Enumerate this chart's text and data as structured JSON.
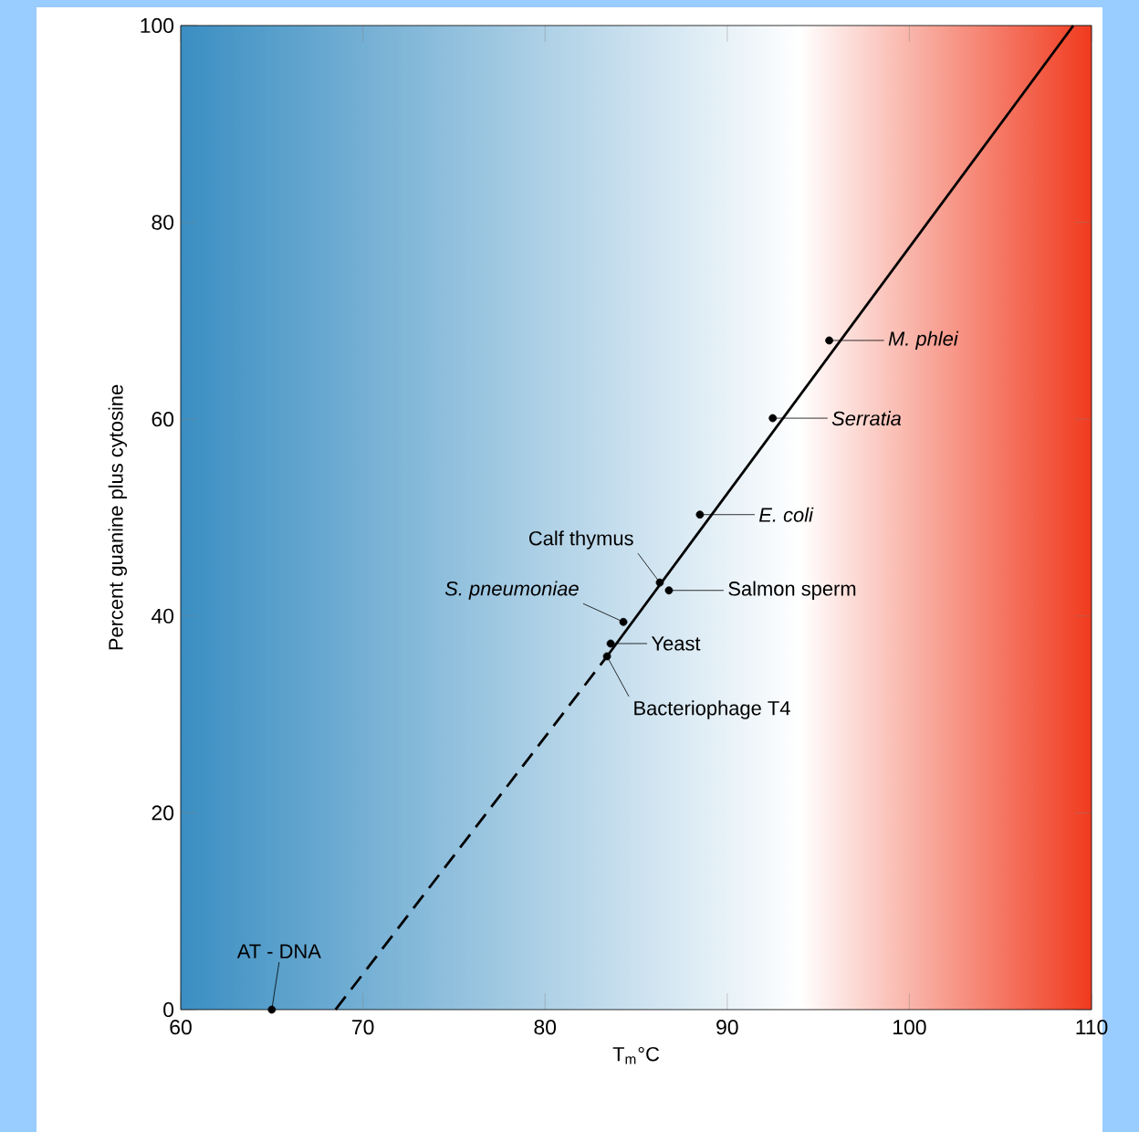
{
  "chart_data": {
    "type": "scatter",
    "xlabel": "T$_{m}$°C",
    "ylabel": "Percent guanine plus cytosine",
    "xlim": [
      60,
      110
    ],
    "ylim": [
      0,
      100
    ],
    "xticks": [
      60,
      70,
      80,
      90,
      100,
      110
    ],
    "yticks": [
      0,
      20,
      40,
      60,
      80,
      100
    ],
    "marker": "circle",
    "bands": [
      {
        "axis": "x",
        "from": 60,
        "to": 94,
        "color": "#3a8ec2"
      },
      {
        "axis": "x",
        "from": 94,
        "to": 110,
        "color": "#f03a1e"
      }
    ],
    "series": [
      {
        "color": "#000000",
        "x": [
          65.0,
          83.4,
          83.6,
          84.3,
          86.3,
          86.8,
          88.5,
          92.5,
          95.6
        ],
        "values": [
          0,
          35.9,
          37.2,
          39.4,
          43.4,
          42.6,
          50.3,
          60.1,
          68.0
        ]
      },
      {
        "type": "line",
        "color": "#000000",
        "line_style": "dashed",
        "marker": "none",
        "x": [
          68.5,
          83.4
        ],
        "values": [
          0,
          35.9
        ]
      },
      {
        "type": "line",
        "color": "#000000",
        "line_style": "solid",
        "marker": "none",
        "x": [
          83.4,
          109
        ],
        "values": [
          35.9,
          100
        ]
      }
    ],
    "annotations": [
      {
        "text": "AT - DNA",
        "x": 65.0,
        "y": 0
      },
      {
        "text": "Bacteriophage T4",
        "x": 83.4,
        "y": 35.9
      },
      {
        "text": "Yeast",
        "x": 83.6,
        "y": 37.2
      },
      {
        "text": "*S. pneumoniae*",
        "x": 84.3,
        "y": 39.4
      },
      {
        "text": "Calf thymus",
        "x": 86.3,
        "y": 43.4
      },
      {
        "text": "Salmon sperm",
        "x": 86.8,
        "y": 42.6
      },
      {
        "text": "*E. coli*",
        "x": 88.5,
        "y": 50.3
      },
      {
        "text": "*Serratia*",
        "x": 92.5,
        "y": 60.1
      },
      {
        "text": "*M. phlei*",
        "x": 95.6,
        "y": 68.0
      }
    ]
  }
}
